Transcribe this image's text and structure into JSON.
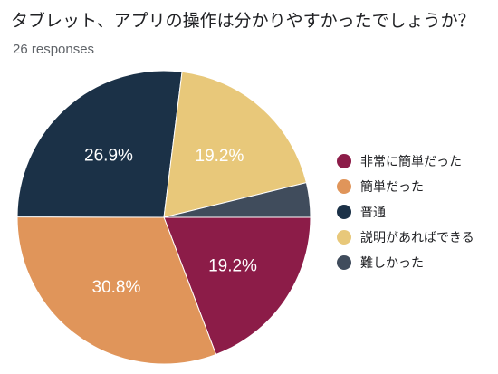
{
  "header": {
    "title": "タブレット、アプリの操作は分かりやすかったでしょうか？",
    "responses": "26 responses"
  },
  "chart_data": {
    "type": "pie",
    "categories": [
      "非常に簡単だった",
      "簡単だった",
      "普通",
      "説明があればできる",
      "難しかった"
    ],
    "values": [
      19.2,
      30.8,
      26.9,
      19.2,
      3.8
    ],
    "data_labels": [
      "19.2%",
      "30.8%",
      "26.9%",
      "19.2%",
      ""
    ],
    "colors": [
      "#8c1c48",
      "#e0955a",
      "#1b3147",
      "#e8c87a",
      "#404c5c"
    ],
    "legend_position": "right"
  }
}
